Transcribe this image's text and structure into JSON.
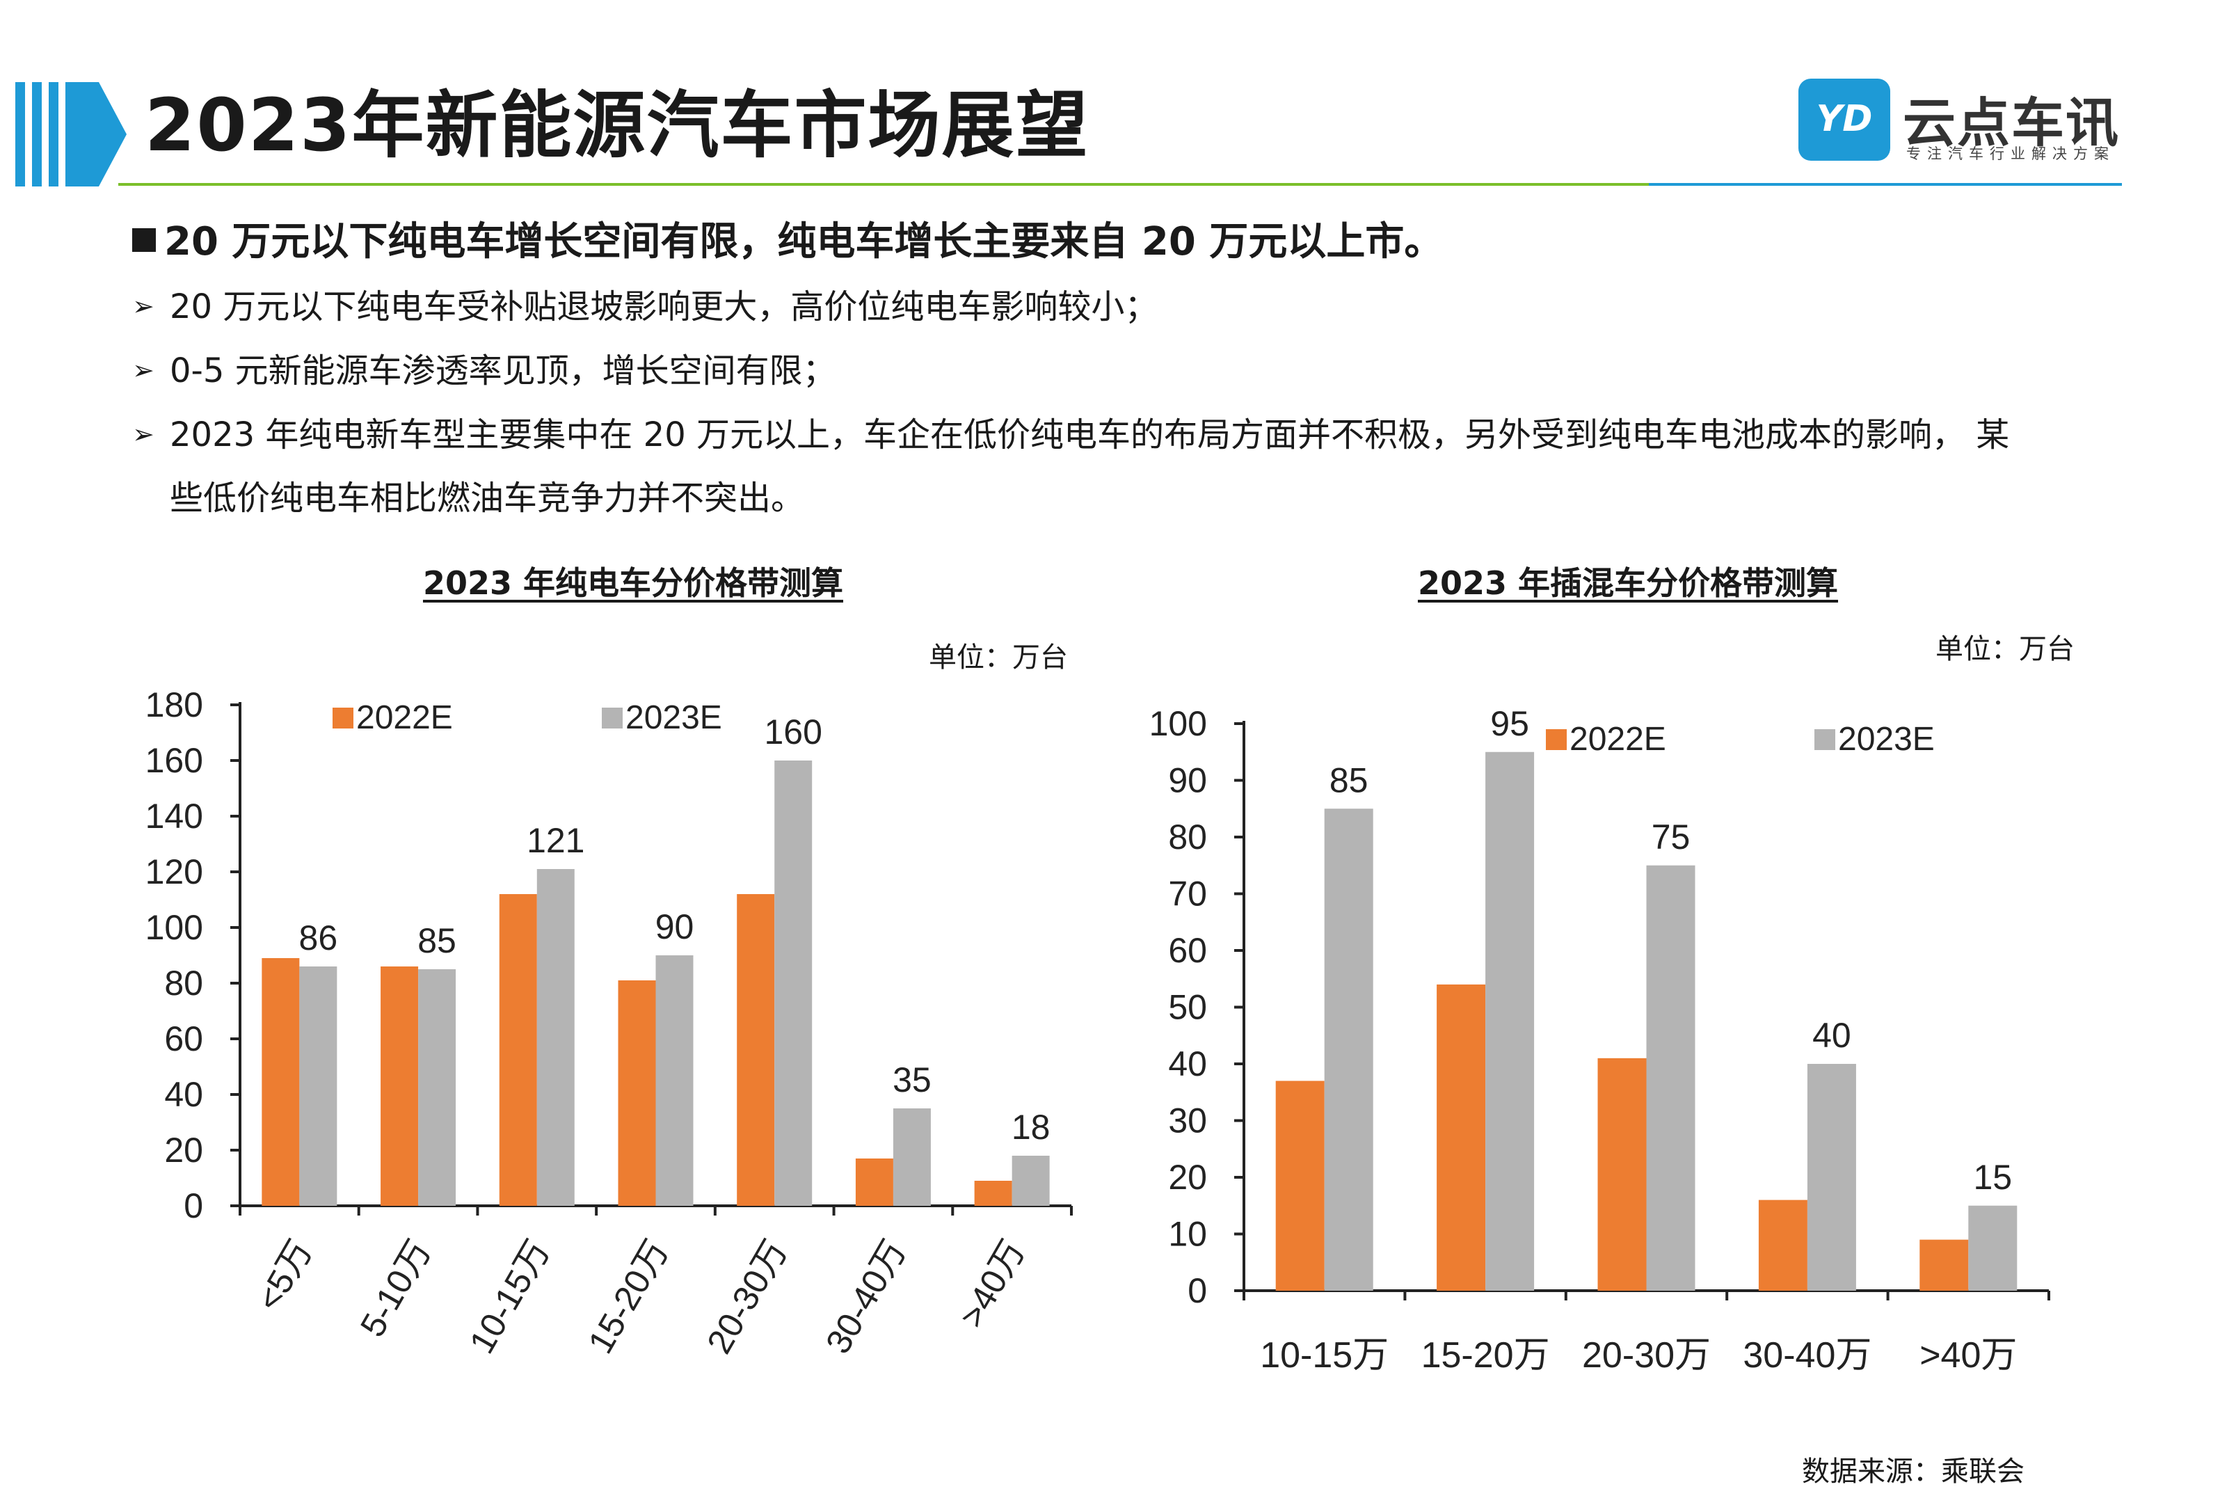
{
  "header": {
    "title": "2023年新能源汽车市场展望",
    "logo_text": "YD",
    "logo_name": "云点车讯",
    "logo_sub": "专注汽车行业解决方案"
  },
  "main_bullet": "20 万元以下纯电车增长空间有限，纯电车增长主要来自 20 万元以上市。",
  "sub_bullets": [
    "20 万元以下纯电车受补贴退坡影响更大，高价位纯电车影响较小；",
    "0-5 元新能源车渗透率见顶，增长空间有限；",
    "2023 年纯电新车型主要集中在 20 万元以上，车企在低价纯电车的布局方面并不积极，另外受到纯电车电池成本的影响， 某"
  ],
  "sub_bullet_continuation": "些低价纯电车相比燃油车竞争力并不突出。",
  "unit_label": "单位：万台",
  "source": "数据来源：乘联会",
  "colors": {
    "accent_blue": "#1e9ad6",
    "accent_green": "#7bbf2a",
    "series_2022": "#ed7d31",
    "series_2023": "#b4b4b4"
  },
  "chart_data": [
    {
      "type": "bar",
      "title": "2023 年纯电车分价格带测算",
      "categories": [
        "<5万",
        "5-10万",
        "10-15万",
        "15-20万",
        "20-30万",
        "30-40万",
        ">40万"
      ],
      "series": [
        {
          "name": "2022E",
          "values": [
            89,
            86,
            112,
            81,
            112,
            17,
            9
          ]
        },
        {
          "name": "2023E",
          "values": [
            86,
            85,
            121,
            90,
            160,
            35,
            18
          ]
        }
      ],
      "data_labels": [
        "86",
        "85",
        "121",
        "90",
        "160",
        "35",
        "18"
      ],
      "yticks": [
        "0",
        "20",
        "40",
        "60",
        "80",
        "100",
        "120",
        "140",
        "160",
        "180"
      ],
      "ylim": [
        0,
        180
      ],
      "legend": "top",
      "grid": false
    },
    {
      "type": "bar",
      "title": "2023 年插混车分价格带测算",
      "categories": [
        "10-15万",
        "15-20万",
        "20-30万",
        "30-40万",
        ">40万"
      ],
      "series": [
        {
          "name": "2022E",
          "values": [
            37,
            54,
            41,
            16,
            9
          ]
        },
        {
          "name": "2023E",
          "values": [
            85,
            95,
            75,
            40,
            15
          ]
        }
      ],
      "data_labels": [
        "85",
        "95",
        "75",
        "40",
        "15"
      ],
      "yticks": [
        "0",
        "10",
        "20",
        "30",
        "40",
        "50",
        "60",
        "70",
        "80",
        "90",
        "100"
      ],
      "ylim": [
        0,
        100
      ],
      "legend": "top",
      "grid": false
    }
  ]
}
